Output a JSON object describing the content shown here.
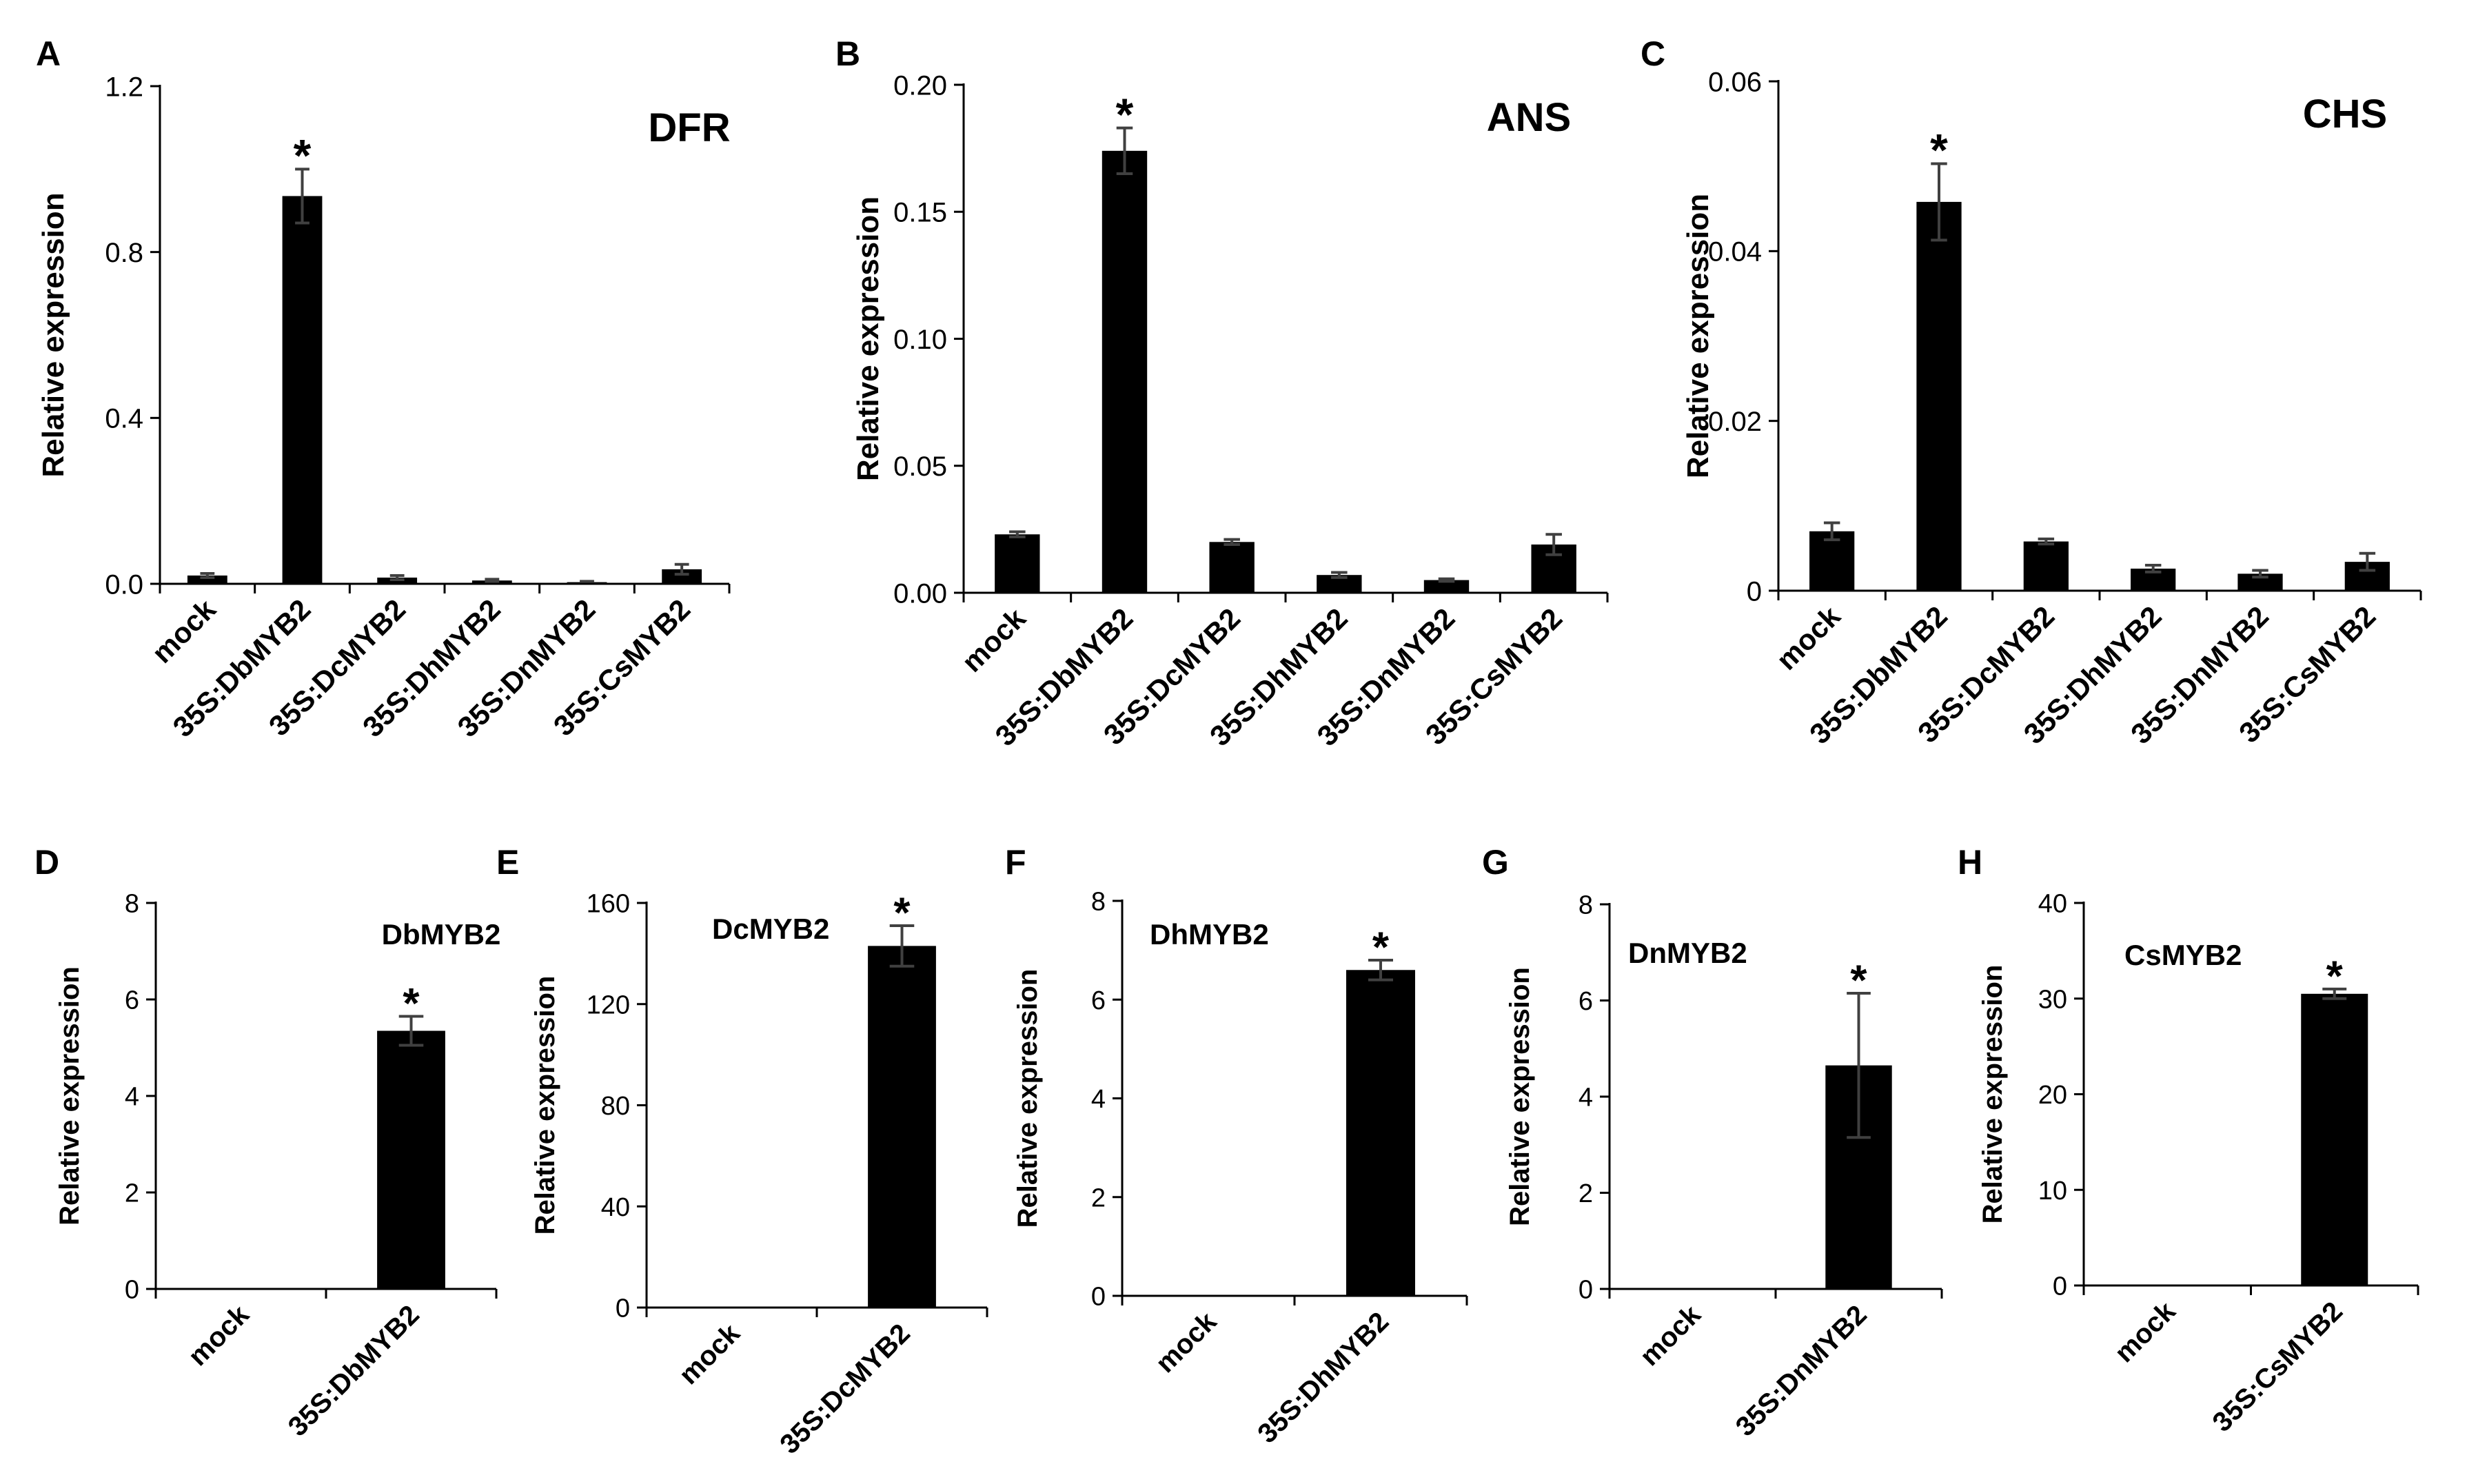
{
  "figure": {
    "ylabel": "Relative expression",
    "significance_marker": "*",
    "bar_color": "#000000",
    "error_color": "#404040",
    "axis_color": "#000000"
  },
  "chart_data": [
    {
      "panel": "A",
      "type": "bar",
      "title": "DFR",
      "ylabel": "Relative expression",
      "categories": [
        "mock",
        "35S:DbMYB2",
        "35S:DcMYB2",
        "35S:DhMYB2",
        "35S:DnMYB2",
        "35S:CsMYB2"
      ],
      "values": [
        0.02,
        0.935,
        0.015,
        0.008,
        0.004,
        0.035
      ],
      "errors": [
        0.005,
        0.065,
        0.005,
        0.003,
        0.002,
        0.012
      ],
      "significant": [
        false,
        true,
        false,
        false,
        false,
        false
      ],
      "ylim": [
        0,
        1.2
      ],
      "yticks": [
        0,
        0.4,
        0.8,
        1.2
      ],
      "ytick_labels": [
        "0.0",
        "0.4",
        "0.8",
        "1.2"
      ]
    },
    {
      "panel": "B",
      "type": "bar",
      "title": "ANS",
      "ylabel": "Relative expression",
      "categories": [
        "mock",
        "35S:DbMYB2",
        "35S:DcMYB2",
        "35S:DhMYB2",
        "35S:DnMYB2",
        "35S:CsMYB2"
      ],
      "values": [
        0.023,
        0.174,
        0.02,
        0.007,
        0.005,
        0.019
      ],
      "errors": [
        0.001,
        0.009,
        0.001,
        0.001,
        0.0005,
        0.004
      ],
      "significant": [
        false,
        true,
        false,
        false,
        false,
        false
      ],
      "ylim": [
        0,
        0.2
      ],
      "yticks": [
        0,
        0.05,
        0.1,
        0.15,
        0.2
      ],
      "ytick_labels": [
        "0.00",
        "0.05",
        "0.10",
        "0.15",
        "0.20"
      ]
    },
    {
      "panel": "C",
      "type": "bar",
      "title": "CHS",
      "ylabel": "Relative expression",
      "categories": [
        "mock",
        "35S:DbMYB2",
        "35S:DcMYB2",
        "35S:DhMYB2",
        "35S:DnMYB2",
        "35S:CsMYB2"
      ],
      "values": [
        0.007,
        0.0458,
        0.0058,
        0.0026,
        0.002,
        0.0034
      ],
      "errors": [
        0.001,
        0.0045,
        0.0003,
        0.0004,
        0.0004,
        0.001
      ],
      "significant": [
        false,
        true,
        false,
        false,
        false,
        false
      ],
      "ylim": [
        0,
        0.06
      ],
      "yticks": [
        0,
        0.02,
        0.04,
        0.06
      ],
      "ytick_labels": [
        "0",
        "0.02",
        "0.04",
        "0.06"
      ]
    },
    {
      "panel": "D",
      "type": "bar",
      "title": "DbMYB2",
      "ylabel": "Relative expression",
      "categories": [
        "mock",
        "35S:DbMYB2"
      ],
      "values": [
        0,
        5.35
      ],
      "errors": [
        0,
        0.3
      ],
      "significant": [
        false,
        true
      ],
      "ylim": [
        0,
        8
      ],
      "yticks": [
        0,
        2,
        4,
        6,
        8
      ],
      "ytick_labels": [
        "0",
        "2",
        "4",
        "6",
        "8"
      ]
    },
    {
      "panel": "E",
      "type": "bar",
      "title": "DcMYB2",
      "ylabel": "Relative expression",
      "categories": [
        "mock",
        "35S:DcMYB2"
      ],
      "values": [
        0,
        143
      ],
      "errors": [
        0,
        8
      ],
      "significant": [
        false,
        true
      ],
      "ylim": [
        0,
        160
      ],
      "yticks": [
        0,
        40,
        80,
        120,
        160
      ],
      "ytick_labels": [
        "0",
        "40",
        "80",
        "120",
        "160"
      ]
    },
    {
      "panel": "F",
      "type": "bar",
      "title": "DhMYB2",
      "ylabel": "Relative expression",
      "categories": [
        "mock",
        "35S:DhMYB2"
      ],
      "values": [
        0,
        6.6
      ],
      "errors": [
        0,
        0.2
      ],
      "significant": [
        false,
        true
      ],
      "ylim": [
        0,
        8
      ],
      "yticks": [
        0,
        2,
        4,
        6,
        8
      ],
      "ytick_labels": [
        "0",
        "2",
        "4",
        "6",
        "8"
      ]
    },
    {
      "panel": "G",
      "type": "bar",
      "title": "DnMYB2",
      "ylabel": "Relative expression",
      "categories": [
        "mock",
        "35S:DnMYB2"
      ],
      "values": [
        0.02,
        4.65
      ],
      "errors": [
        0,
        1.5
      ],
      "significant": [
        false,
        true
      ],
      "ylim": [
        0,
        8
      ],
      "yticks": [
        0,
        2,
        4,
        6,
        8
      ],
      "ytick_labels": [
        "0",
        "2",
        "4",
        "6",
        "8"
      ]
    },
    {
      "panel": "H",
      "type": "bar",
      "title": "CsMYB2",
      "ylabel": "Relative expression",
      "categories": [
        "mock",
        "35S:CsMYB2"
      ],
      "values": [
        0,
        30.5
      ],
      "errors": [
        0,
        0.5
      ],
      "significant": [
        false,
        true
      ],
      "ylim": [
        0,
        40
      ],
      "yticks": [
        0,
        10,
        20,
        30,
        40
      ],
      "ytick_labels": [
        "0",
        "10",
        "20",
        "30",
        "40"
      ]
    }
  ]
}
